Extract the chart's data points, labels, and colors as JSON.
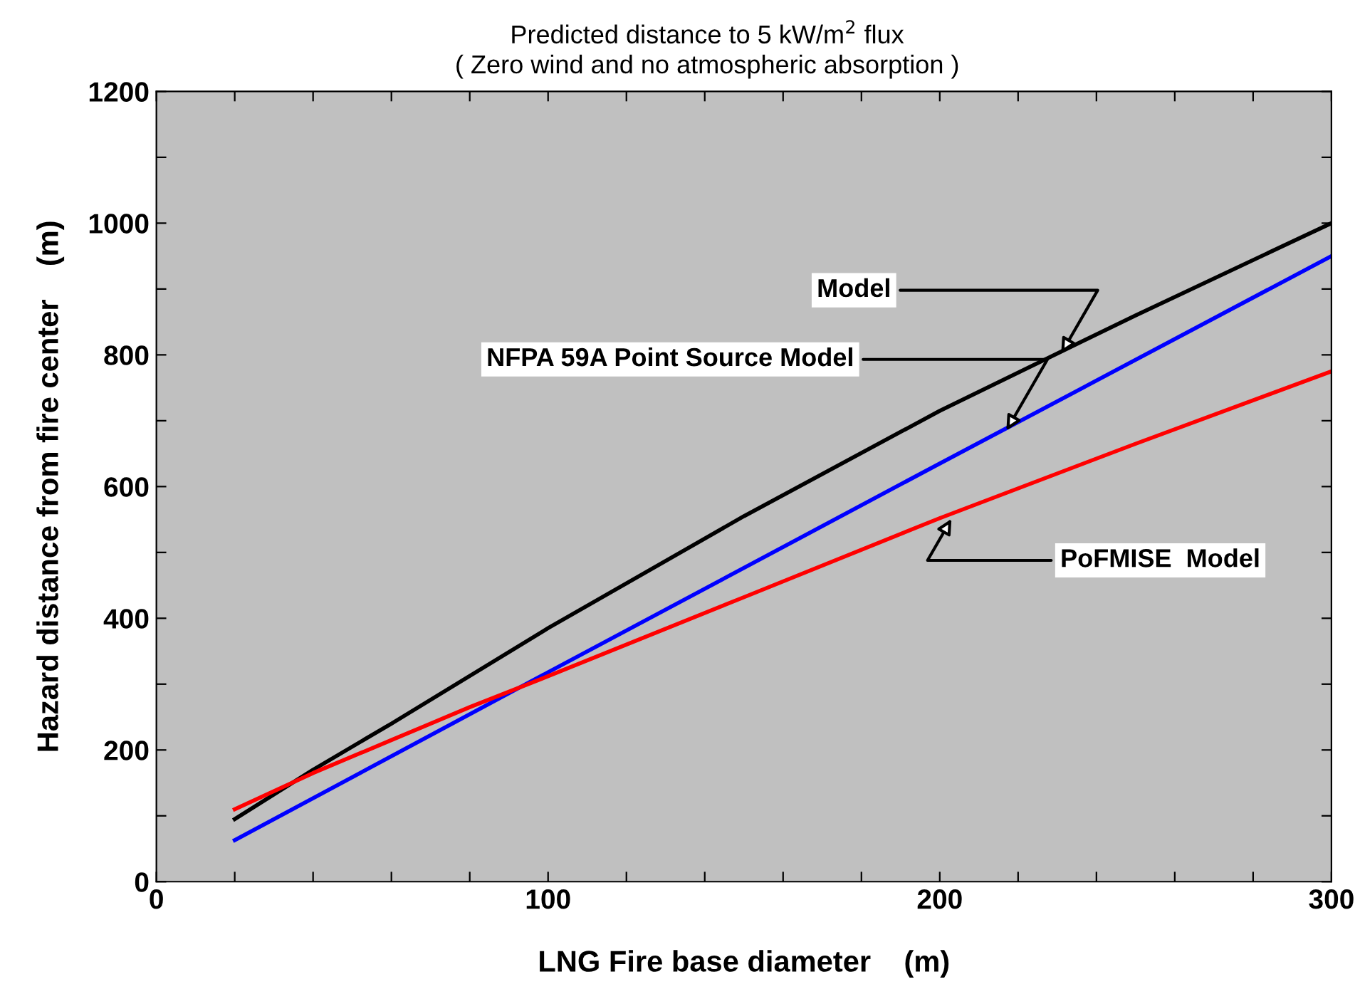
{
  "chart_data": {
    "type": "line",
    "title": "Predicted distance to 5 kW/m$^{2}$ flux",
    "subtitle": "( Zero wind and no atmospheric absorption )",
    "xlabel": "LNG Fire base diameter    (m)",
    "ylabel": "Hazard distance from fire center    (m)",
    "xlim": [
      0,
      300
    ],
    "ylim": [
      0,
      1200
    ],
    "xticks": [
      0,
      {
        "value": 20,
        "label": null
      },
      {
        "value": 40,
        "label": null
      },
      {
        "value": 60,
        "label": null
      },
      {
        "value": 80,
        "label": null
      },
      100,
      {
        "value": 120,
        "label": null
      },
      {
        "value": 140,
        "label": null
      },
      {
        "value": 160,
        "label": null
      },
      {
        "value": 180,
        "label": null
      },
      200,
      {
        "value": 220,
        "label": null
      },
      {
        "value": 240,
        "label": null
      },
      {
        "value": 260,
        "label": null
      },
      {
        "value": 280,
        "label": null
      },
      300
    ],
    "yticks": [
      0,
      {
        "value": 100,
        "label": null
      },
      200,
      {
        "value": 300,
        "label": null
      },
      400,
      {
        "value": 500,
        "label": null
      },
      600,
      {
        "value": 700,
        "label": null
      },
      800,
      {
        "value": 900,
        "label": null
      },
      1000,
      {
        "value": 1100,
        "label": null
      },
      1200
    ],
    "grid": false,
    "legend": false,
    "marker": "none",
    "line_style": "solid",
    "series": [
      {
        "color": "#000000",
        "x": [
          20,
          40,
          60,
          100,
          150,
          200,
          250,
          300
        ],
        "values": [
          95,
          170,
          240,
          385,
          555,
          715,
          860,
          1000
        ]
      },
      {
        "color": "#0000ff",
        "x": [
          20,
          100,
          200,
          300
        ],
        "values": [
          63,
          318,
          635,
          950
        ]
      },
      {
        "color": "#ff0000",
        "x": [
          20,
          40,
          60,
          80,
          100,
          150,
          200,
          250,
          300
        ],
        "values": [
          110,
          165,
          215,
          265,
          312,
          432,
          552,
          665,
          775
        ]
      }
    ],
    "annotations": [
      {
        "text": "Model",
        "x": 231,
        "y": 802
      },
      {
        "text": "NFPA 59A Point Source Model",
        "x": 217,
        "y": 685
      },
      {
        "text": "PoFMISE  Model",
        "x": 203,
        "y": 551
      }
    ]
  }
}
